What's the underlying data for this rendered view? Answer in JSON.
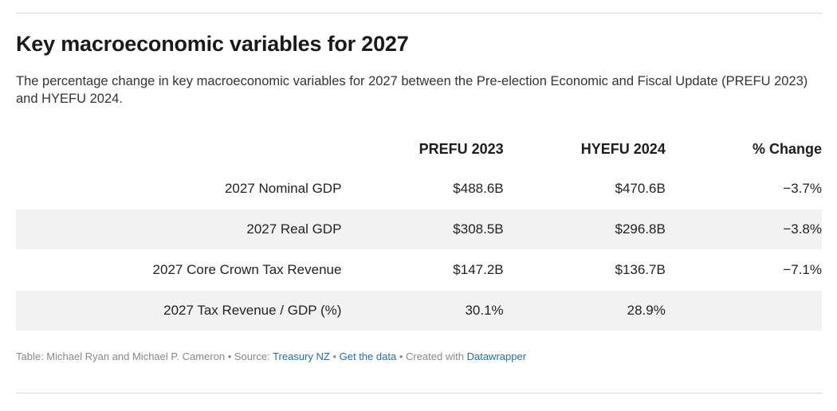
{
  "title": "Key macroeconomic variables for 2027",
  "subtitle": "The percentage change in key macroeconomic variables for 2027 between the Pre-election Economic and Fiscal Update (PREFU 2023) and HYEFU 2024.",
  "chart_data": {
    "type": "table",
    "columns": [
      "",
      "PREFU 2023",
      "HYEFU 2024",
      "% Change"
    ],
    "rows": [
      {
        "label": "2027 Nominal GDP",
        "prefu": "$488.6B",
        "hyefu": "$470.6B",
        "change": "−3.7%"
      },
      {
        "label": "2027 Real GDP",
        "prefu": "$308.5B",
        "hyefu": "$296.8B",
        "change": "−3.8%"
      },
      {
        "label": "2027 Core Crown Tax Revenue",
        "prefu": "$147.2B",
        "hyefu": "$136.7B",
        "change": "−7.1%"
      },
      {
        "label": "2027 Tax Revenue / GDP (%)",
        "prefu": "30.1%",
        "hyefu": "28.9%",
        "change": ""
      }
    ]
  },
  "footer": {
    "authors": "Table: Michael Ryan and Michael P. Cameron",
    "source_label": "Source:",
    "source_link": "Treasury NZ",
    "get_data": "Get the data",
    "created_with": "Created with",
    "datawrapper": "Datawrapper"
  }
}
